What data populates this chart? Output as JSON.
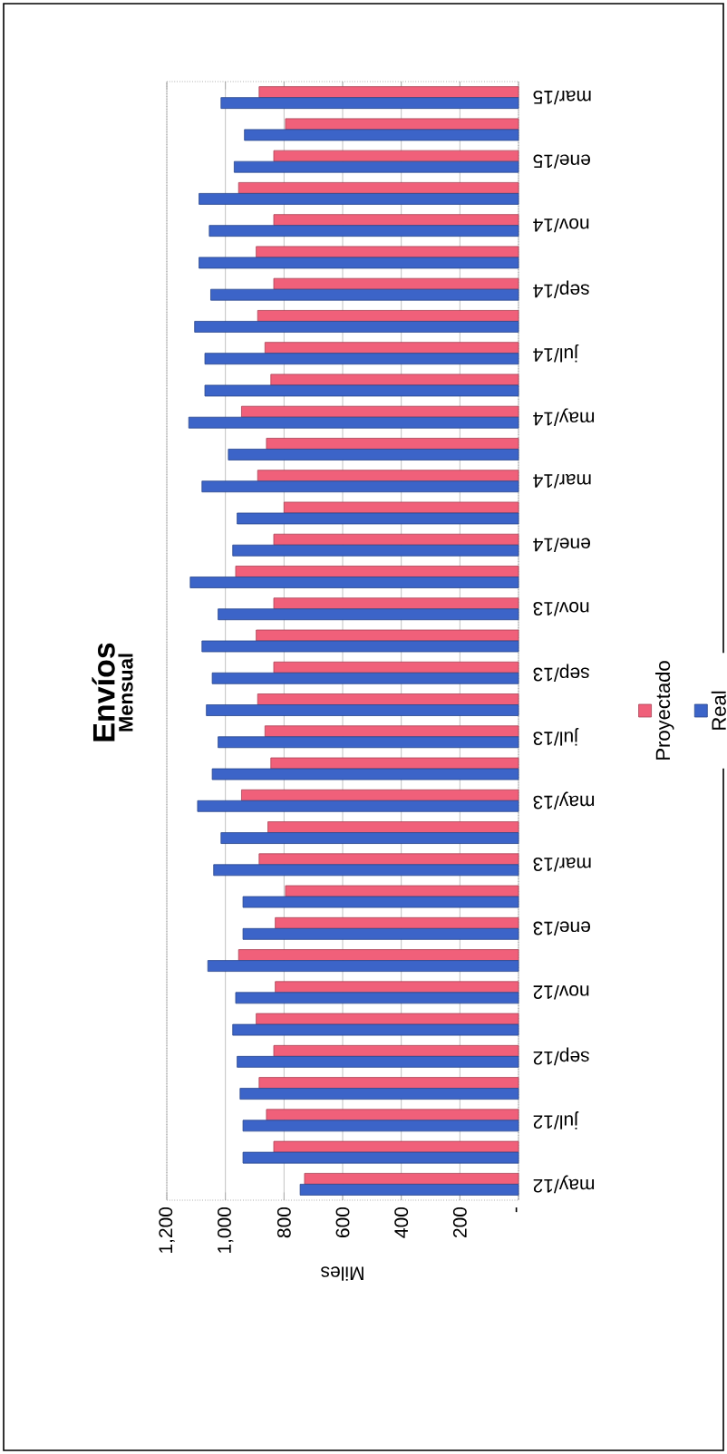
{
  "chart_data": {
    "type": "bar",
    "orientation": "horizontal",
    "title": "Envíos",
    "subtitle": "Mensual",
    "xlabel": "Miles",
    "categories": [
      "mar/15",
      null,
      "ene/15",
      null,
      "nov/14",
      null,
      "sep/14",
      null,
      "jul/14",
      null,
      "may/14",
      null,
      "mar/14",
      null,
      "ene/14",
      null,
      "nov/13",
      null,
      "sep/13",
      null,
      "jul/13",
      null,
      "may/13",
      null,
      "mar/13",
      null,
      "ene/13",
      null,
      "nov/12",
      null,
      "sep/12",
      null,
      "jul/12",
      null,
      "may/12"
    ],
    "series": [
      {
        "name": "Proyectado",
        "color": "#f0607a",
        "values": [
          885,
          795,
          835,
          955,
          835,
          895,
          835,
          890,
          865,
          845,
          945,
          860,
          890,
          800,
          835,
          965,
          835,
          895,
          835,
          890,
          865,
          845,
          945,
          855,
          885,
          795,
          830,
          955,
          830,
          895,
          835,
          885,
          860,
          835,
          730
        ]
      },
      {
        "name": "Real",
        "color": "#3c64c8",
        "values": [
          1015,
          935,
          970,
          1090,
          1055,
          1090,
          1050,
          1105,
          1070,
          1070,
          1125,
          990,
          1080,
          960,
          975,
          1120,
          1025,
          1080,
          1045,
          1065,
          1025,
          1045,
          1095,
          1015,
          1040,
          940,
          940,
          1060,
          965,
          975,
          960,
          950,
          940,
          940,
          745
        ]
      }
    ],
    "xlim": [
      1200,
      0
    ],
    "xticks": [
      {
        "value": 1200,
        "label": "1,200"
      },
      {
        "value": 1000,
        "label": "1,000"
      },
      800,
      600,
      400,
      200,
      {
        "value": 0,
        "label": "-"
      }
    ],
    "grid": "x",
    "legend": "right"
  }
}
